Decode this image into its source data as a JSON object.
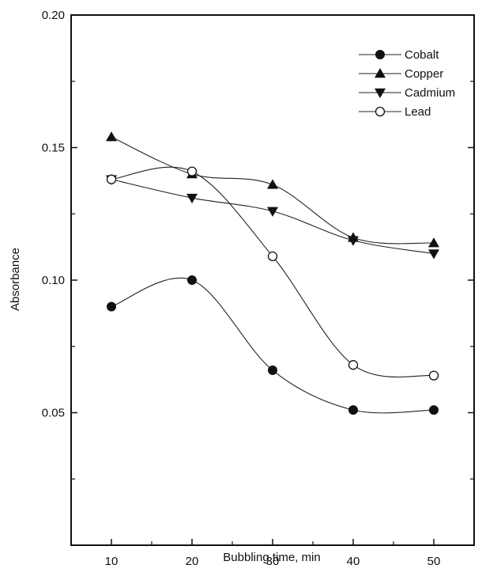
{
  "chart_data": {
    "type": "line",
    "title": "",
    "xlabel": "Bubbling time,  min",
    "ylabel": "Absorbance",
    "xlim": [
      5,
      55
    ],
    "ylim": [
      0.0,
      0.2
    ],
    "x": [
      10,
      20,
      30,
      40,
      50
    ],
    "x_ticks": [
      10,
      20,
      30,
      40,
      50
    ],
    "x_tick_labels": [
      "10",
      "20",
      "30",
      "40",
      "50"
    ],
    "y_ticks": [
      0.05,
      0.1,
      0.15,
      0.2
    ],
    "y_tick_labels": [
      "0.05",
      "0.10",
      "0.15",
      "0.20"
    ],
    "grid": false,
    "smooth": true,
    "legend_position": "top-right",
    "series": [
      {
        "name": "Cobalt",
        "marker": "filled-circle",
        "values": [
          0.09,
          0.1,
          0.066,
          0.051,
          0.051
        ]
      },
      {
        "name": "Copper",
        "marker": "filled-triangle-up",
        "values": [
          0.154,
          0.14,
          0.136,
          0.116,
          0.114
        ]
      },
      {
        "name": "Cadmium",
        "marker": "filled-triangle-down",
        "values": [
          0.138,
          0.131,
          0.126,
          0.115,
          0.11
        ]
      },
      {
        "name": "Lead",
        "marker": "open-circle",
        "values": [
          0.138,
          0.141,
          0.109,
          0.068,
          0.064
        ]
      }
    ]
  }
}
